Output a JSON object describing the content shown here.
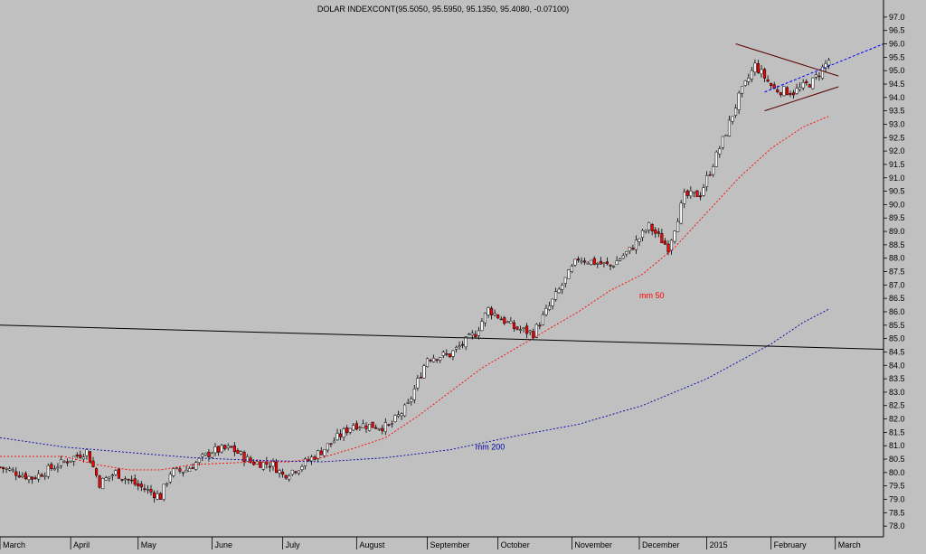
{
  "chart_data": {
    "type": "candlestick",
    "title": "DOLAR INDEXCONT(95.5050, 95.5950, 95.1350, 95.4080, -0.07100)",
    "ylim": [
      77.6,
      97.3
    ],
    "y_ticks": [
      78.0,
      78.5,
      79.0,
      79.5,
      80.0,
      80.5,
      81.0,
      81.5,
      82.0,
      82.5,
      83.0,
      83.5,
      84.0,
      84.5,
      85.0,
      85.5,
      86.0,
      86.5,
      87.0,
      87.5,
      88.0,
      88.5,
      89.0,
      89.5,
      90.0,
      90.5,
      91.0,
      91.5,
      92.0,
      92.5,
      93.0,
      93.5,
      94.0,
      94.5,
      95.0,
      95.5,
      96.0,
      96.5,
      97.0
    ],
    "x_ticks": [
      {
        "label": "March",
        "day": 0
      },
      {
        "label": "April",
        "day": 22
      },
      {
        "label": "May",
        "day": 43
      },
      {
        "label": "June",
        "day": 66
      },
      {
        "label": "July",
        "day": 88
      },
      {
        "label": "August",
        "day": 111
      },
      {
        "label": "September",
        "day": 133
      },
      {
        "label": "October",
        "day": 155
      },
      {
        "label": "November",
        "day": 178
      },
      {
        "label": "December",
        "day": 199
      },
      {
        "label": "2015",
        "day": 220
      },
      {
        "label": "February",
        "day": 240
      },
      {
        "label": "March",
        "day": 260
      }
    ],
    "x_range": [
      0,
      275
    ],
    "close_path": [
      [
        0,
        80.2
      ],
      [
        10,
        79.8
      ],
      [
        20,
        80.4
      ],
      [
        27,
        80.8
      ],
      [
        31,
        79.6
      ],
      [
        36,
        80.0
      ],
      [
        43,
        79.5
      ],
      [
        50,
        79.1
      ],
      [
        53,
        80.0
      ],
      [
        58,
        80.1
      ],
      [
        66,
        80.8
      ],
      [
        72,
        80.9
      ],
      [
        78,
        80.4
      ],
      [
        85,
        80.3
      ],
      [
        88,
        79.9
      ],
      [
        93,
        80.2
      ],
      [
        100,
        80.8
      ],
      [
        110,
        81.8
      ],
      [
        121,
        81.7
      ],
      [
        127,
        82.5
      ],
      [
        133,
        84.3
      ],
      [
        140,
        84.4
      ],
      [
        148,
        85.2
      ],
      [
        152,
        86.1
      ],
      [
        160,
        85.4
      ],
      [
        166,
        85.2
      ],
      [
        172,
        86.4
      ],
      [
        180,
        88.0
      ],
      [
        190,
        87.7
      ],
      [
        196,
        88.3
      ],
      [
        202,
        89.2
      ],
      [
        208,
        88.4
      ],
      [
        213,
        90.3
      ],
      [
        218,
        90.4
      ],
      [
        225,
        92.4
      ],
      [
        230,
        94.0
      ],
      [
        235,
        95.2
      ],
      [
        241,
        94.3
      ],
      [
        247,
        94.2
      ],
      [
        253,
        94.6
      ],
      [
        258,
        95.4
      ]
    ],
    "ma_series": [
      {
        "name": "mm 50",
        "color": "#ff0000",
        "values": [
          [
            0,
            80.6
          ],
          [
            20,
            80.6
          ],
          [
            30,
            80.3
          ],
          [
            40,
            80.1
          ],
          [
            50,
            80.1
          ],
          [
            60,
            80.3
          ],
          [
            70,
            80.35
          ],
          [
            80,
            80.4
          ],
          [
            90,
            80.4
          ],
          [
            100,
            80.55
          ],
          [
            110,
            80.9
          ],
          [
            120,
            81.3
          ],
          [
            130,
            82.1
          ],
          [
            140,
            83.0
          ],
          [
            150,
            83.9
          ],
          [
            160,
            84.6
          ],
          [
            170,
            85.3
          ],
          [
            180,
            86.0
          ],
          [
            190,
            86.8
          ],
          [
            200,
            87.4
          ],
          [
            210,
            88.4
          ],
          [
            220,
            89.7
          ],
          [
            230,
            91.0
          ],
          [
            240,
            92.1
          ],
          [
            250,
            92.9
          ],
          [
            258,
            93.3
          ]
        ]
      },
      {
        "name": "mm 200",
        "color": "#0000aa",
        "values": [
          [
            0,
            81.3
          ],
          [
            20,
            80.95
          ],
          [
            40,
            80.75
          ],
          [
            60,
            80.55
          ],
          [
            80,
            80.45
          ],
          [
            100,
            80.4
          ],
          [
            120,
            80.55
          ],
          [
            140,
            80.85
          ],
          [
            160,
            81.35
          ],
          [
            180,
            81.8
          ],
          [
            200,
            82.5
          ],
          [
            220,
            83.5
          ],
          [
            240,
            84.8
          ],
          [
            250,
            85.6
          ],
          [
            258,
            86.1
          ]
        ]
      }
    ],
    "annotations": [
      {
        "text": "mm 50",
        "day": 199,
        "value": 86.5,
        "color": "#ff0000"
      },
      {
        "text": "mm 200",
        "day": 148,
        "value": 80.85,
        "color": "#0000aa"
      }
    ],
    "trend_lines": [
      {
        "points": [
          [
            0,
            85.5
          ],
          [
            275,
            84.6
          ]
        ],
        "color": "#000000",
        "dash": false
      },
      {
        "points": [
          [
            238,
            94.2
          ],
          [
            275,
            96.0
          ]
        ],
        "color": "#0000ff",
        "dash": true
      },
      {
        "points": [
          [
            229,
            96.0
          ],
          [
            261,
            94.8
          ]
        ],
        "color": "#5a0000",
        "dash": false
      },
      {
        "points": [
          [
            238,
            93.5
          ],
          [
            261,
            94.4
          ]
        ],
        "color": "#5a0000",
        "dash": false
      }
    ],
    "grid": false,
    "colors": {
      "background": "#c0c0c0",
      "up": "#ffffff",
      "down": "#ff0000",
      "wick": "#000000"
    }
  }
}
